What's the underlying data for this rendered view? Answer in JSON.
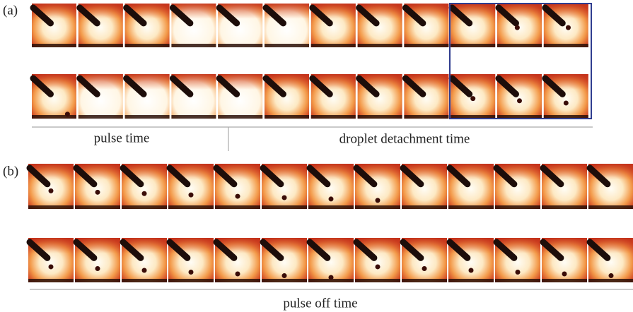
{
  "panel_a": {
    "label": "(a)",
    "left_caption": "pulse time",
    "right_caption": "droplet detachment time"
  },
  "panel_b": {
    "label": "(b)",
    "caption": "pulse off time"
  }
}
